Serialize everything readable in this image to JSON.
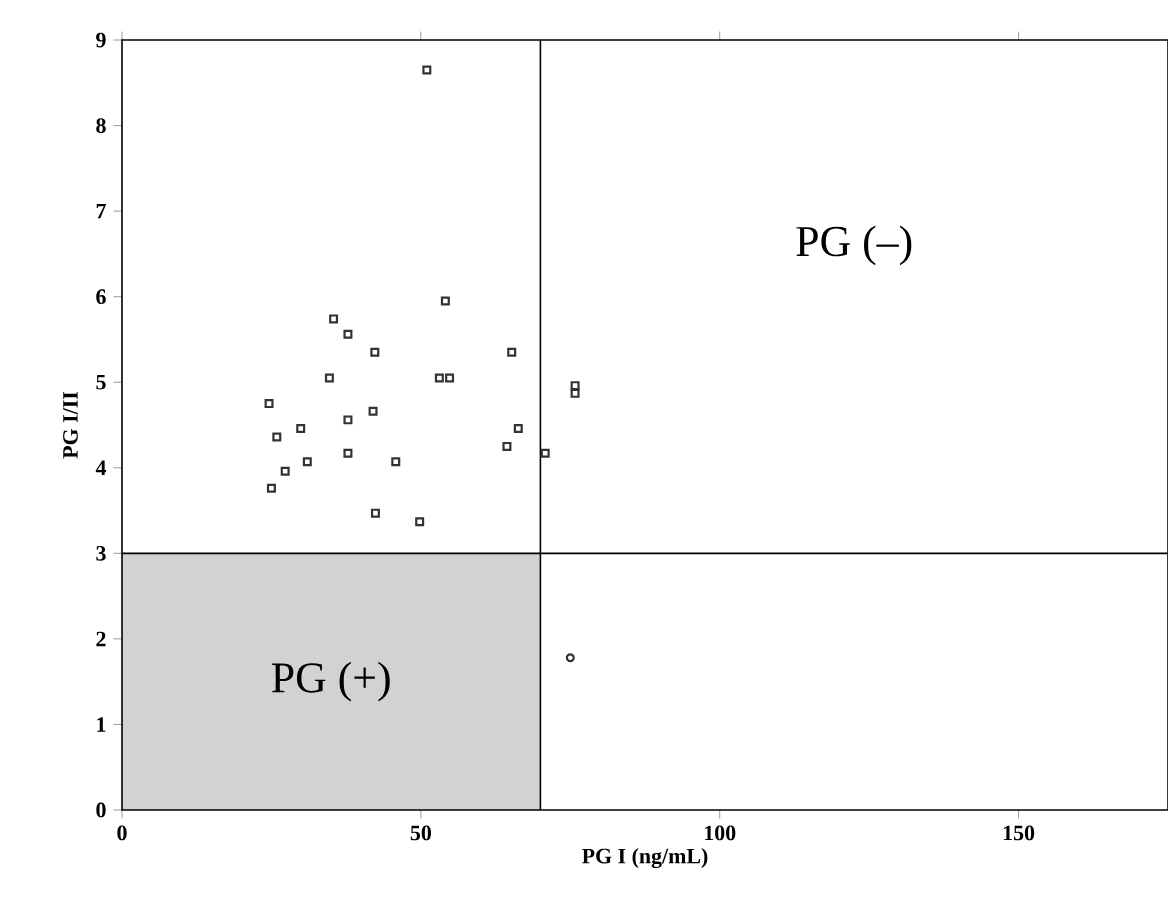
{
  "chart_data": {
    "type": "scatter",
    "xlabel": "PG I (ng/mL)",
    "ylabel": "PG I/II",
    "xlim": [
      0,
      175
    ],
    "ylim": [
      0,
      9
    ],
    "xticks": [
      0,
      50,
      100,
      150
    ],
    "yticks": [
      0,
      1,
      2,
      3,
      4,
      5,
      6,
      7,
      8,
      9
    ],
    "series": [
      {
        "color": "#333333",
        "marker": "square",
        "x": [
          51,
          54.1,
          35.4,
          37.8,
          42.3,
          65.2,
          34.7,
          53.1,
          54.8,
          24.6,
          75.8,
          75.8,
          25.9,
          29.9,
          37.8,
          42,
          66.3,
          64.4,
          70.8,
          37.8,
          45.8,
          31,
          27.3,
          25,
          42.4,
          49.8
        ],
        "values": [
          8.65,
          5.95,
          5.74,
          5.56,
          5.35,
          5.35,
          5.05,
          5.05,
          5.05,
          4.75,
          4.96,
          4.87,
          4.36,
          4.46,
          4.56,
          4.66,
          4.46,
          4.25,
          4.17,
          4.17,
          4.07,
          4.07,
          3.96,
          3.76,
          3.47,
          3.37
        ]
      },
      {
        "color": "#333333",
        "marker": "circle",
        "x": [
          75
        ],
        "values": [
          1.78
        ]
      }
    ],
    "ref_lines": [
      {
        "axis": "x",
        "value": 70
      },
      {
        "axis": "y",
        "value": 3
      }
    ],
    "bands": [
      {
        "axis": "x",
        "from": 0,
        "to": 70,
        "label": "PG (+)",
        "color": "#d2d2d2"
      }
    ],
    "annotations": [
      "PG (–)"
    ]
  }
}
